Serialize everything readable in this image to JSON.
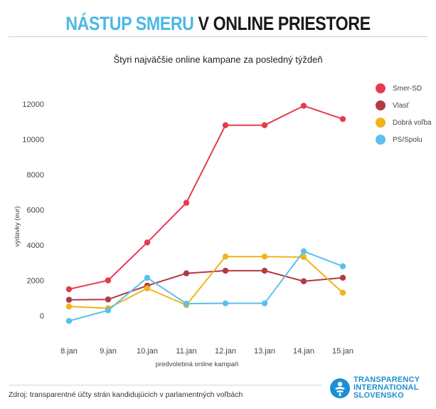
{
  "header": {
    "title_accent": "NÁSTUP SMERU",
    "title_rest": "V ONLINE PRIESTORE",
    "subtitle": "Štyri najväčšie online kampane za posledný týždeň"
  },
  "footer": {
    "source": "Zdroj: transparentné účty strán kandidujúcich v parlamentných voľbách",
    "logo_line1": "TRANSPARENCY",
    "logo_line2": "INTERNATIONAL",
    "logo_line3": "SLOVENSKO",
    "logo_icon": "transparency-international-logo-icon"
  },
  "chart_data": {
    "type": "line",
    "title": "Štyri najväčšie online kampane za posledný týždeň",
    "xlabel": "predvolebná online kampaň",
    "ylabel": "výdavky (eur)",
    "categories": [
      "8.jan",
      "9.jan",
      "10.jan",
      "11.jan",
      "12.jan",
      "13.jan",
      "14.jan",
      "15.jan"
    ],
    "yticks": [
      0,
      2000,
      4000,
      6000,
      8000,
      10000,
      12000
    ],
    "ytick_labels": [
      "0",
      "2000",
      "4000",
      "6000",
      "8000",
      "10000",
      "12000"
    ],
    "ylim": [
      -1000,
      12800
    ],
    "grid": false,
    "legend_position": "top-right",
    "series": [
      {
        "name": "Smer-SD",
        "color": "#e63b4f",
        "values": [
          1500,
          2000,
          4150,
          6400,
          10800,
          10800,
          11900,
          11150
        ]
      },
      {
        "name": "Vlasť",
        "color": "#b23a44",
        "values": [
          900,
          920,
          1700,
          2400,
          2550,
          2550,
          1950,
          2150
        ]
      },
      {
        "name": "Dobrá voľba",
        "color": "#f2b31b",
        "values": [
          520,
          420,
          1550,
          600,
          3350,
          3350,
          3320,
          1300
        ]
      },
      {
        "name": "PS/Spolu",
        "color": "#5bc0eb",
        "values": [
          -300,
          300,
          2150,
          680,
          700,
          700,
          3650,
          2800
        ]
      }
    ]
  }
}
